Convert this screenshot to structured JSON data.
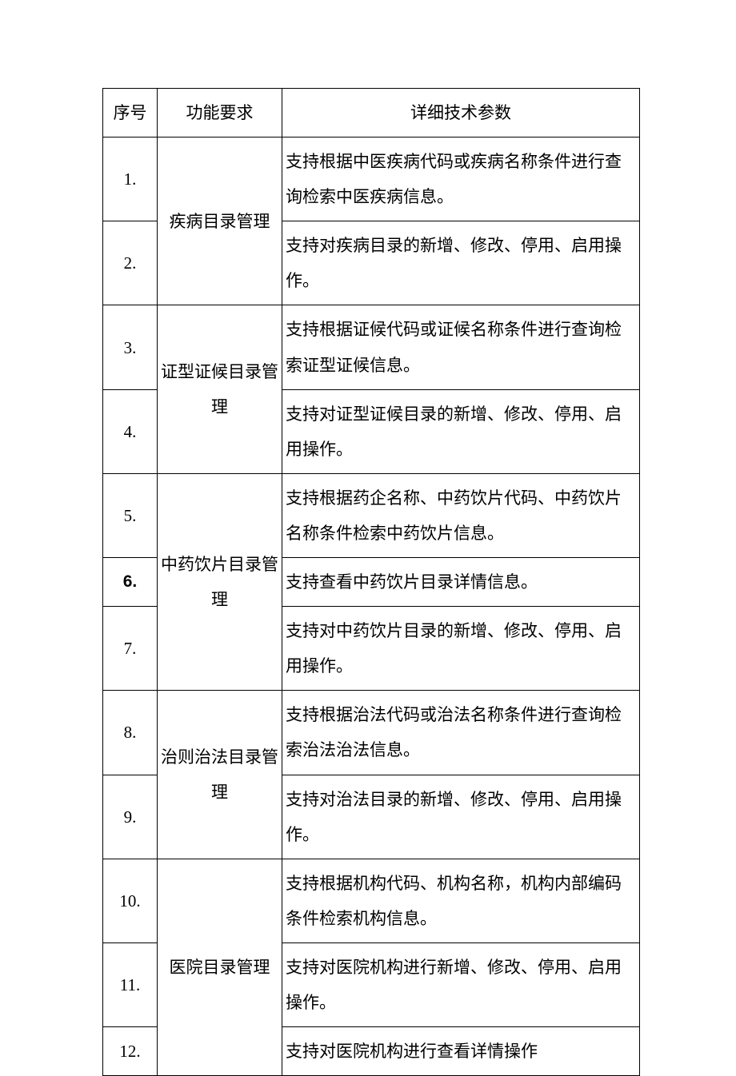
{
  "table": {
    "headers": {
      "seq": "序号",
      "func": "功能要求",
      "detail": "详细技术参数"
    },
    "groups": [
      {
        "func": "疾病目录管理",
        "rows": [
          {
            "seq": "1.",
            "detail": "支持根据中医疾病代码或疾病名称条件进行查询检索中医疾病信息。"
          },
          {
            "seq": "2.",
            "detail": "支持对疾病目录的新增、修改、停用、启用操作。"
          }
        ]
      },
      {
        "func": "证型证候目录管理",
        "rows": [
          {
            "seq": "3.",
            "detail": "支持根据证候代码或证候名称条件进行查询检索证型证候信息。"
          },
          {
            "seq": "4.",
            "detail": "支持对证型证候目录的新增、修改、停用、启用操作。"
          }
        ]
      },
      {
        "func": "中药饮片目录管理",
        "rows": [
          {
            "seq": "5.",
            "detail": "支持根据药企名称、中药饮片代码、中药饮片名称条件检索中药饮片信息。"
          },
          {
            "seq": "6.",
            "bold": true,
            "detail": "支持查看中药饮片目录详情信息。"
          },
          {
            "seq": "7.",
            "detail": "支持对中药饮片目录的新增、修改、停用、启用操作。"
          }
        ]
      },
      {
        "func": "治则治法目录管理",
        "rows": [
          {
            "seq": "8.",
            "detail": "支持根据治法代码或治法名称条件进行查询检索治法治法信息。"
          },
          {
            "seq": "9.",
            "detail": "支持对治法目录的新增、修改、停用、启用操作。"
          }
        ]
      },
      {
        "func": "医院目录管理",
        "rows": [
          {
            "seq": "10.",
            "detail": "支持根据机构代码、机构名称，机构内部编码条件检索机构信息。"
          },
          {
            "seq": "11.",
            "detail": "支持对医院机构进行新增、修改、停用、启用操作。"
          },
          {
            "seq": "12.",
            "detail": "支持对医院机构进行查看详情操作"
          }
        ]
      }
    ]
  },
  "style": {
    "background_color": "#ffffff",
    "border_color": "#000000",
    "text_color": "#000000",
    "font_size_pt": 16,
    "line_height": 2.1
  }
}
